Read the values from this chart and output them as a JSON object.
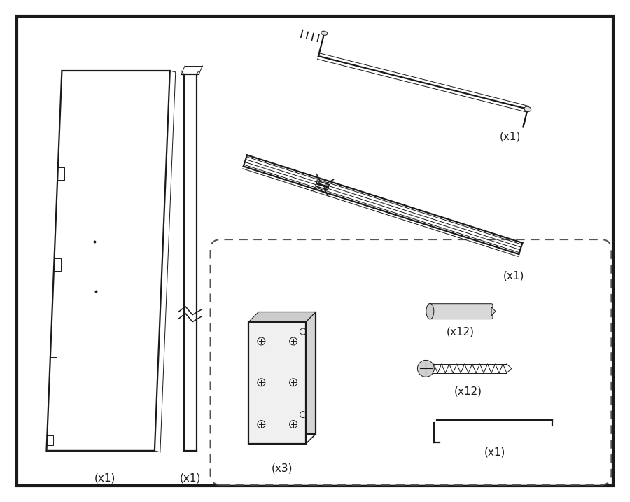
{
  "bg_color": "#ffffff",
  "border_color": "#1a1a1a",
  "line_color": "#1a1a1a",
  "text_color": "#1a1a1a",
  "figsize": [
    9.0,
    7.17
  ],
  "dpi": 100,
  "labels": {
    "door_panel": "(x1)",
    "door_frame": "(x1)",
    "handle": "(x1)",
    "rail": "(x1)",
    "hinge": "(x3)",
    "anchor": "(x12)",
    "screw": "(x12)",
    "hex_key": "(x1)"
  }
}
